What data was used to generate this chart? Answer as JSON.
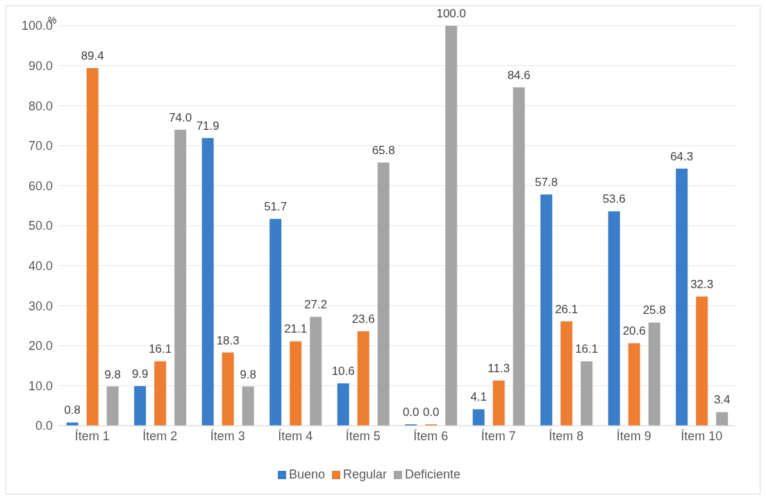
{
  "chart_data": {
    "type": "bar",
    "ylabel": "%",
    "categories": [
      "Ítem 1",
      "Ítem 2",
      "Ítem 3",
      "Ítem 4",
      "Ítem 5",
      "Ítem 6",
      "Ítem 7",
      "Ítem 8",
      "Ítem 9",
      "Ítem 10"
    ],
    "series": [
      {
        "name": "Bueno",
        "color": "#3a7dc9",
        "values": [
          0.8,
          9.9,
          71.9,
          51.7,
          10.6,
          0.0,
          4.1,
          57.8,
          53.6,
          64.3
        ],
        "value_labels": [
          "0.8",
          "9.9",
          "71.9",
          "51.7",
          "10.6",
          "0.0",
          "4.1",
          "57.8",
          "53.6",
          "64.3"
        ]
      },
      {
        "name": "Regular",
        "color": "#ed7d31",
        "values": [
          89.4,
          16.1,
          18.3,
          21.1,
          23.6,
          0.0,
          11.3,
          26.1,
          20.6,
          32.3
        ],
        "value_labels": [
          "89.4",
          "16.1",
          "18.3",
          "21.1",
          "23.6",
          "0.0",
          "11.3",
          "26.1",
          "20.6",
          "32.3"
        ]
      },
      {
        "name": "Deficiente",
        "color": "#a5a5a5",
        "values": [
          9.8,
          74.0,
          9.8,
          27.2,
          65.8,
          100.0,
          84.6,
          16.1,
          25.8,
          3.4
        ],
        "value_labels": [
          "9.8",
          "74.0",
          "9.8",
          "27.2",
          "65.8",
          "100.0",
          "84.6",
          "16.1",
          "25.8",
          "3.4"
        ]
      }
    ],
    "ylim": [
      0,
      100
    ],
    "yticks": [
      {
        "value": 0,
        "label": "0.0"
      },
      {
        "value": 10,
        "label": "10.0"
      },
      {
        "value": 20,
        "label": "20.0"
      },
      {
        "value": 30,
        "label": "30.0"
      },
      {
        "value": 40,
        "label": "40.0"
      },
      {
        "value": 50,
        "label": "50.0"
      },
      {
        "value": 60,
        "label": "60.0"
      },
      {
        "value": 70,
        "label": "70.0"
      },
      {
        "value": 80,
        "label": "80.0"
      },
      {
        "value": 90,
        "label": "90.0"
      },
      {
        "value": 100,
        "label": "100.0"
      }
    ],
    "grid": "y",
    "legend": "bottom"
  }
}
